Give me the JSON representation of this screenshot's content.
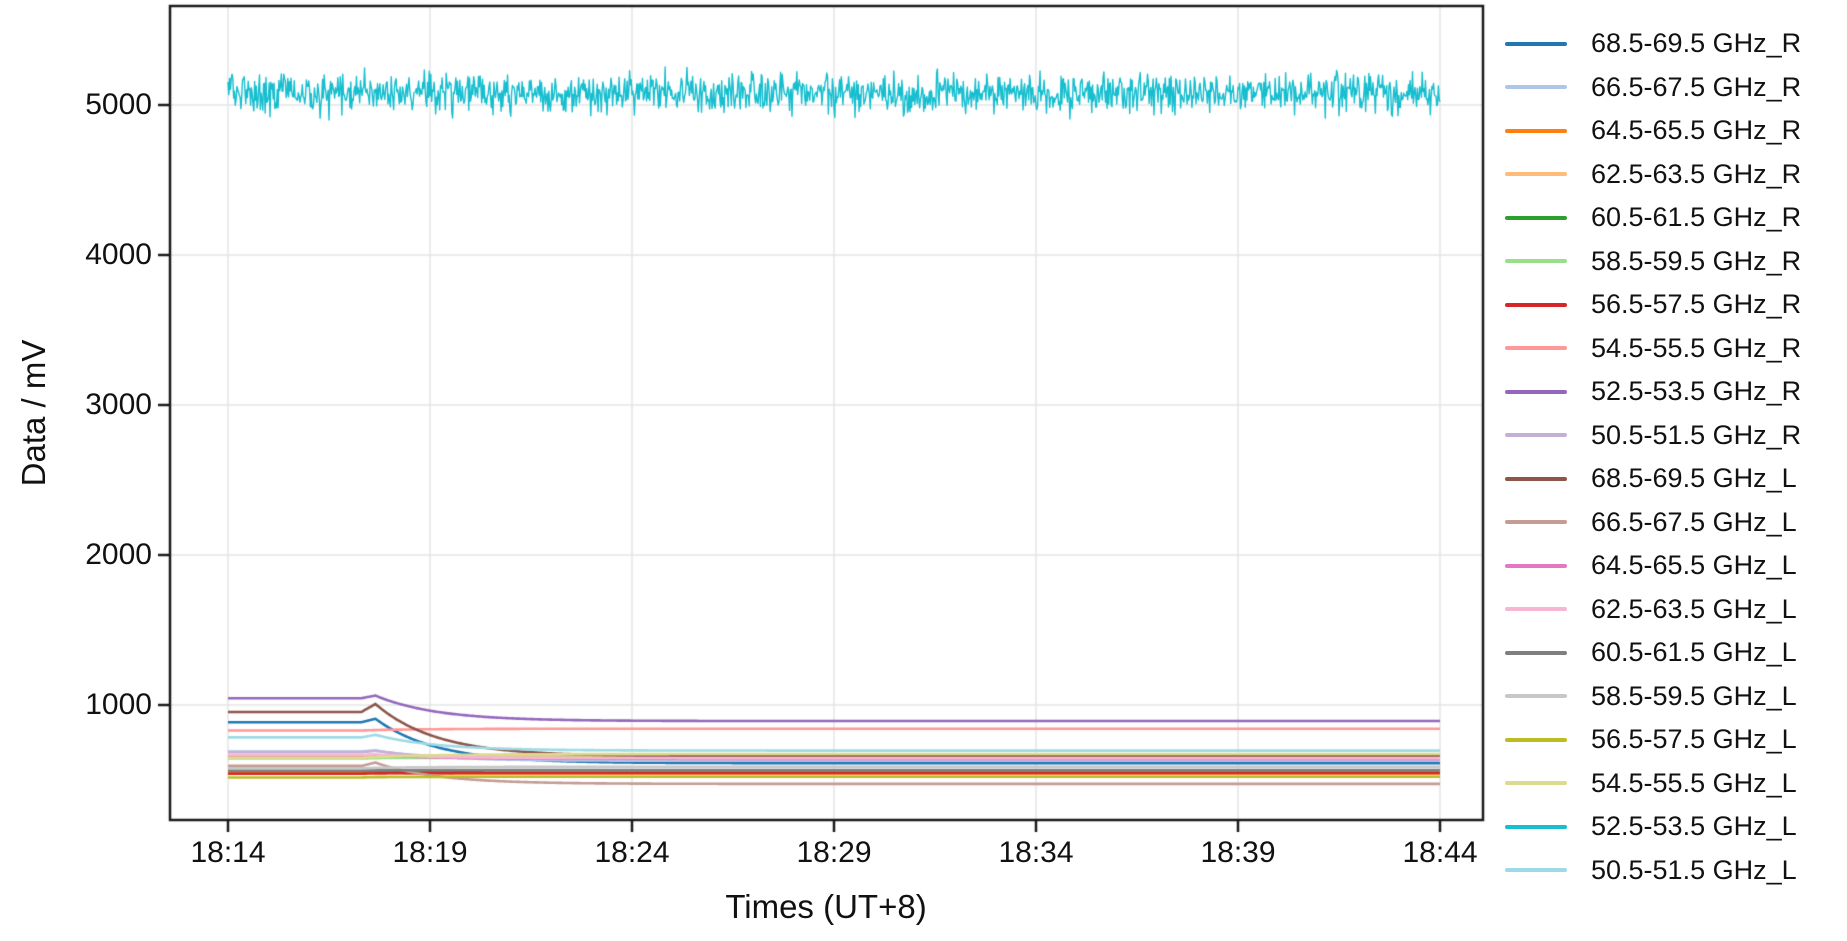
{
  "figure": {
    "background": "#ffffff",
    "grid_color": "#e4e4e4",
    "spine_color": "#1a1a1a"
  },
  "chart_data": {
    "type": "line",
    "title": "",
    "xlabel": "Times (UT+8)",
    "ylabel": "Data / mV",
    "x_ticks": [
      "18:14",
      "18:19",
      "18:24",
      "18:29",
      "18:34",
      "18:39",
      "18:44"
    ],
    "y_ticks": [
      "1000",
      "2000",
      "3000",
      "4000",
      "5000"
    ],
    "y_tick_values": [
      1000,
      2000,
      3000,
      4000,
      5000
    ],
    "ylim": [
      233,
      5660
    ],
    "x_span_minutes": 30,
    "grid": true,
    "legend_position": "right-outside",
    "event": {
      "flat_until_min": 3.3,
      "peak_min": 3.65,
      "decay_tau_min": 1.5,
      "description": "lines flat from 18:14, small spike near 18:17.5, exponential settle to new level by ~18:23"
    },
    "series": [
      {
        "name": "68.5-69.5 GHz_R",
        "color": "#1f77b4",
        "kind": "smooth",
        "start_mV": 885,
        "peak_mV": 908,
        "end_mV": 612
      },
      {
        "name": "66.5-67.5 GHz_R",
        "color": "#aec7e8",
        "kind": "smooth",
        "start_mV": 690,
        "peak_mV": 698,
        "end_mV": 628
      },
      {
        "name": "64.5-65.5 GHz_R",
        "color": "#ff7f0e",
        "kind": "smooth",
        "start_mV": 545,
        "peak_mV": 548,
        "end_mV": 543
      },
      {
        "name": "62.5-63.5 GHz_R",
        "color": "#ffbb78",
        "kind": "smooth",
        "start_mV": 652,
        "peak_mV": 655,
        "end_mV": 658
      },
      {
        "name": "60.5-61.5 GHz_R",
        "color": "#2ca02c",
        "kind": "smooth",
        "start_mV": 560,
        "peak_mV": 562,
        "end_mV": 563
      },
      {
        "name": "58.5-59.5 GHz_R",
        "color": "#98df8a",
        "kind": "smooth",
        "start_mV": 643,
        "peak_mV": 646,
        "end_mV": 648
      },
      {
        "name": "56.5-57.5 GHz_R",
        "color": "#d62728",
        "kind": "smooth",
        "start_mV": 542,
        "peak_mV": 544,
        "end_mV": 547
      },
      {
        "name": "54.5-55.5 GHz_R",
        "color": "#ff9896",
        "kind": "smooth",
        "start_mV": 830,
        "peak_mV": 833,
        "end_mV": 842
      },
      {
        "name": "52.5-53.5 GHz_R",
        "color": "#9467bd",
        "kind": "smooth",
        "start_mV": 1045,
        "peak_mV": 1063,
        "end_mV": 893
      },
      {
        "name": "50.5-51.5 GHz_R",
        "color": "#c5b0d5",
        "kind": "smooth",
        "start_mV": 686,
        "peak_mV": 694,
        "end_mV": 638
      },
      {
        "name": "68.5-69.5 GHz_L",
        "color": "#8c564b",
        "kind": "smooth",
        "start_mV": 953,
        "peak_mV": 1007,
        "end_mV": 658
      },
      {
        "name": "66.5-67.5 GHz_L",
        "color": "#c49c94",
        "kind": "smooth",
        "start_mV": 594,
        "peak_mV": 616,
        "end_mV": 474
      },
      {
        "name": "64.5-65.5 GHz_L",
        "color": "#e377c2",
        "kind": "smooth",
        "start_mV": 664,
        "peak_mV": 667,
        "end_mV": 641
      },
      {
        "name": "62.5-63.5 GHz_L",
        "color": "#f7b6d2",
        "kind": "smooth",
        "start_mV": 668,
        "peak_mV": 670,
        "end_mV": 646
      },
      {
        "name": "60.5-61.5 GHz_L",
        "color": "#7f7f7f",
        "kind": "smooth",
        "start_mV": 562,
        "peak_mV": 564,
        "end_mV": 567
      },
      {
        "name": "58.5-59.5 GHz_L",
        "color": "#c7c7c7",
        "kind": "smooth",
        "start_mV": 578,
        "peak_mV": 581,
        "end_mV": 588
      },
      {
        "name": "56.5-57.5 GHz_L",
        "color": "#bcbd22",
        "kind": "smooth",
        "start_mV": 517,
        "peak_mV": 519,
        "end_mV": 522
      },
      {
        "name": "54.5-55.5 GHz_L",
        "color": "#dbdb8d",
        "kind": "smooth",
        "start_mV": 648,
        "peak_mV": 652,
        "end_mV": 673
      },
      {
        "name": "52.5-53.5 GHz_L",
        "color": "#17becf",
        "kind": "noisy",
        "mean_mV": 5080,
        "noise_sigma_mV": 65,
        "noise_peak_mV": 200
      },
      {
        "name": "50.5-51.5 GHz_L",
        "color": "#9edae5",
        "kind": "smooth",
        "start_mV": 784,
        "peak_mV": 801,
        "end_mV": 696
      }
    ]
  }
}
